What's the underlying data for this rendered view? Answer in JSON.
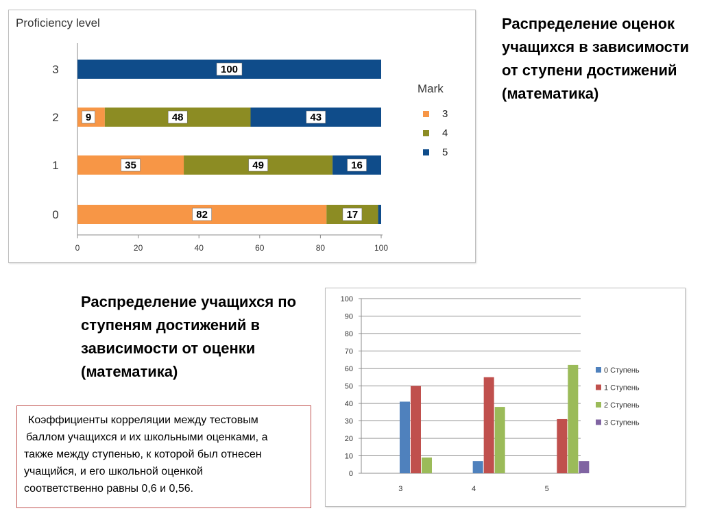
{
  "headings": {
    "top_right": "Распределение оценок учащихся в зависимости от ступени достижений (математика)",
    "middle_left": "Распределение учащихся по ступеням достижений в зависимости от оценки (математика)"
  },
  "note": {
    "lines": [
      "Коэффициенты корреляции между тестовым",
      "баллом учащихся и их школьными оценками, а",
      "также между ступенью, к которой был отнесен",
      "учащийся, и его школьной оценкой",
      "соответственно  равны 0,6 и 0,56."
    ]
  },
  "chart_data": [
    {
      "type": "bar",
      "orientation": "horizontal",
      "stacked": true,
      "title": "Proficiency level",
      "categories": [
        "0",
        "1",
        "2",
        "3"
      ],
      "series": [
        {
          "name": "3",
          "color": "#f79646",
          "values": [
            82,
            35,
            9,
            0
          ]
        },
        {
          "name": "4",
          "color": "#8c8c23",
          "values": [
            17,
            49,
            48,
            0
          ]
        },
        {
          "name": "5",
          "color": "#0f4c8a",
          "values": [
            1,
            16,
            43,
            100
          ]
        }
      ],
      "data_labels": [
        [
          "82",
          "17",
          ""
        ],
        [
          "35",
          "49",
          "16"
        ],
        [
          "9",
          "48",
          "43"
        ],
        [
          "",
          "",
          "100"
        ]
      ],
      "xlim": [
        0,
        100
      ],
      "xticks": [
        "0",
        "20",
        "40",
        "60",
        "80",
        "100"
      ],
      "legend_title": "Mark",
      "legend_position": "right",
      "grid": false
    },
    {
      "type": "bar",
      "orientation": "vertical",
      "stacked": false,
      "categories": [
        "3",
        "4",
        "5"
      ],
      "series": [
        {
          "name": "0 Ступень",
          "color": "#4f81bd",
          "values": [
            41,
            7,
            0
          ]
        },
        {
          "name": "1 Ступень",
          "color": "#c0504d",
          "values": [
            50,
            55,
            31
          ]
        },
        {
          "name": "2 Ступень",
          "color": "#9bbb59",
          "values": [
            9,
            38,
            62
          ]
        },
        {
          "name": "3 Ступень",
          "color": "#8064a2",
          "values": [
            0,
            0,
            7
          ]
        }
      ],
      "ylim": [
        0,
        100
      ],
      "yticks": [
        "0",
        "10",
        "20",
        "30",
        "40",
        "50",
        "60",
        "70",
        "80",
        "90",
        "100"
      ],
      "legend_position": "right",
      "grid": true
    }
  ]
}
